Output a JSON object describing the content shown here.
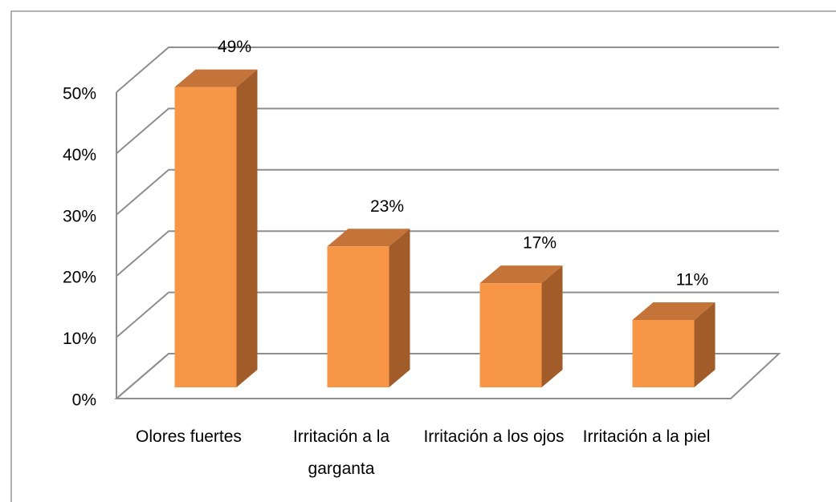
{
  "chart_data": {
    "type": "bar3d",
    "categories": [
      "Olores fuertes",
      "Irritación a la garganta",
      "Irritación a los ojos",
      "Irritación a la piel"
    ],
    "values": [
      49,
      23,
      17,
      11
    ],
    "value_labels": [
      "49%",
      "23%",
      "17%",
      "11%"
    ],
    "color": "#f79646",
    "ylim": [
      0,
      50
    ],
    "yticks": [
      {
        "value": 0,
        "label": "0%"
      },
      {
        "value": 10,
        "label": "10%"
      },
      {
        "value": 20,
        "label": "20%"
      },
      {
        "value": 30,
        "label": "30%"
      },
      {
        "value": 40,
        "label": "40%"
      },
      {
        "value": 50,
        "label": "50%"
      }
    ],
    "grid": true
  }
}
